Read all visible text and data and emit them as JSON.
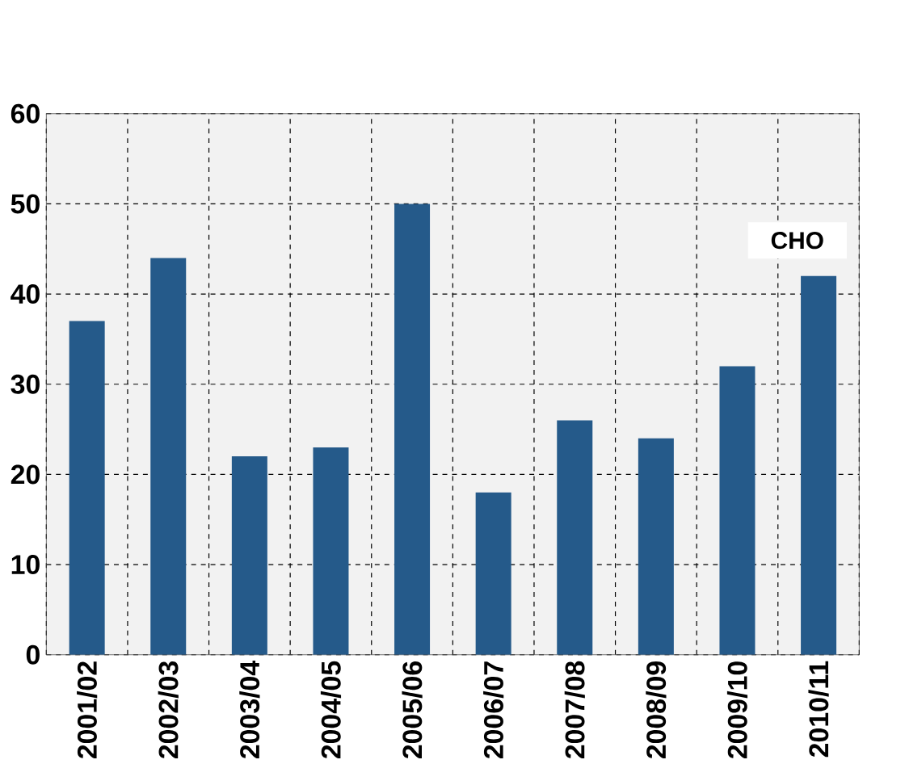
{
  "chart_data": {
    "type": "bar",
    "title": "CHO",
    "categories": [
      "2001/02",
      "2002/03",
      "2003/04",
      "2004/05",
      "2005/06",
      "2006/07",
      "2007/08",
      "2008/09",
      "2009/10",
      "2010/11"
    ],
    "values": [
      37,
      44,
      22,
      23,
      50,
      18,
      26,
      24,
      32,
      42
    ],
    "color": "#255a8a",
    "ylim": [
      0,
      60
    ],
    "yticks": [
      0,
      10,
      20,
      30,
      40,
      50,
      60
    ],
    "grid": true
  }
}
